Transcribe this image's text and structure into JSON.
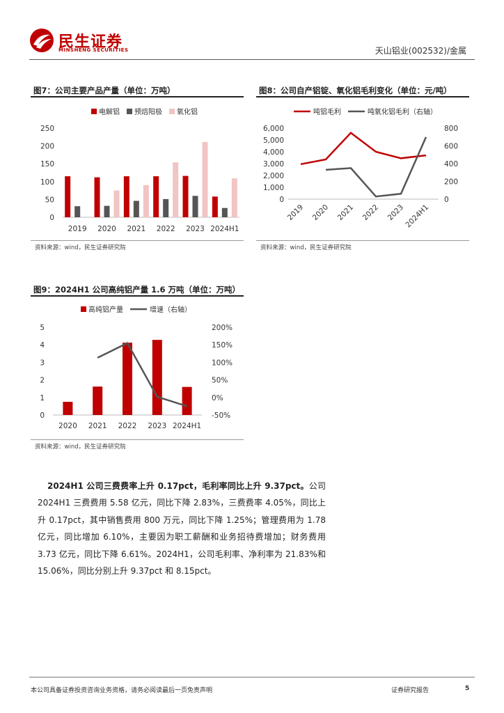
{
  "header": {
    "logo_cn": "民生证券",
    "logo_en": "MINSHENG SECURITIES",
    "doc_ref": "天山铝业(002532)/金属"
  },
  "figures": {
    "fig7": {
      "title": "图7：公司主要产品产量（单位：万吨）",
      "source": "资料来源：wind，民生证券研究院"
    },
    "fig8": {
      "title": "图8：公司自产铝锭、氧化铝毛利变化（单位：元/吨）",
      "source": "资料来源：wind，民生证券研究院"
    },
    "fig9": {
      "title": "图9：2024H1 公司高纯铝产量 1.6 万吨（单位：万吨）",
      "source": "资料来源：wind，民生证券研究院"
    }
  },
  "chart_data": [
    {
      "id": "fig7",
      "type": "bar",
      "categories": [
        "2019",
        "2020",
        "2021",
        "2022",
        "2023",
        "2024H1"
      ],
      "series": [
        {
          "name": "电解铝",
          "values": [
            115,
            112,
            115,
            115,
            116,
            58
          ],
          "color": "#c00000"
        },
        {
          "name": "预焙阳极",
          "values": [
            31,
            32,
            46,
            51,
            60,
            26
          ],
          "color": "#555555"
        },
        {
          "name": "氧化铝",
          "values": [
            0,
            75,
            90,
            154,
            211,
            109
          ],
          "color": "#f2c4c4"
        }
      ],
      "ylim": [
        0,
        250
      ],
      "yticks": [
        "0",
        "50",
        "100",
        "150",
        "200",
        "250"
      ],
      "legend": "top"
    },
    {
      "id": "fig8",
      "type": "line",
      "categories": [
        "2019",
        "2020",
        "2021",
        "2022",
        "2023",
        "2024H1"
      ],
      "series": [
        {
          "name": "吨铝毛利",
          "values": [
            2950,
            3350,
            5600,
            4000,
            3450,
            3700
          ],
          "axis": "left",
          "color": "#c00000"
        },
        {
          "name": "吨氧化铝毛利（右轴）",
          "values": [
            null,
            330,
            350,
            30,
            60,
            700
          ],
          "axis": "right",
          "color": "#555555"
        }
      ],
      "ylim": [
        0,
        6000
      ],
      "y2lim": [
        0,
        800
      ],
      "yticks": [
        "0",
        "1,000",
        "2,000",
        "3,000",
        "4,000",
        "5,000",
        "6,000"
      ],
      "y2ticks": [
        "0",
        "200",
        "400",
        "600",
        "800"
      ],
      "legend": "top"
    },
    {
      "id": "fig9",
      "type": "bar",
      "categories": [
        "2020",
        "2021",
        "2022",
        "2023",
        "2024H1"
      ],
      "series": [
        {
          "name": "高纯铝产量",
          "values": [
            0.75,
            1.62,
            4.12,
            4.28,
            1.6
          ],
          "axis": "left",
          "color": "#c00000"
        },
        {
          "name": "增速（右轴）",
          "type": "line",
          "values": [
            null,
            1.13,
            1.55,
            0.02,
            -0.25
          ],
          "axis": "right",
          "color": "#555555"
        }
      ],
      "ylim": [
        0,
        5
      ],
      "y2lim": [
        -0.5,
        2.0
      ],
      "yticks": [
        "0",
        "1",
        "2",
        "3",
        "4",
        "5"
      ],
      "y2ticks": [
        "-50%",
        "0%",
        "50%",
        "100%",
        "150%",
        "200%"
      ],
      "legend": "top"
    }
  ],
  "paragraph": {
    "bold": "2024H1 公司三费费率上升 0.17pct，毛利率同比上升 9.37pct。",
    "text": "公司 2024H1 三费费用 5.58 亿元，同比下降 2.83%，三费费率 4.05%，同比上升 0.17pct，其中销售费用 800 万元，同比下降 1.25%；管理费用为 1.78 亿元，同比增加 6.10%，主要因为职工薪酬和业务招待费增加；财务费用 3.73 亿元，同比下降 6.61%。2024H1，公司毛利率、净利率为 21.83%和 15.06%，同比分别上升 9.37pct 和 8.15pct。"
  },
  "footer": {
    "disclaimer": "本公司具备证券投资咨询业务资格，请务必阅读最后一页免责声明",
    "report_type": "证券研究报告",
    "page": "5"
  }
}
